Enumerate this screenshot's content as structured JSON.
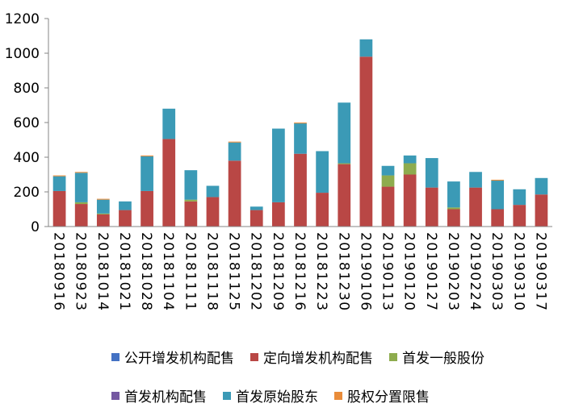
{
  "chart_data": {
    "type": "bar",
    "stacked": true,
    "categories": [
      "20180916",
      "20180923",
      "20181014",
      "20181021",
      "20181028",
      "20181104",
      "20181111",
      "20181118",
      "20181125",
      "20181202",
      "20181209",
      "20181216",
      "20181223",
      "20181230",
      "20190106",
      "20190113",
      "20190120",
      "20190127",
      "20190203",
      "20190224",
      "20190303",
      "20190310",
      "20190317"
    ],
    "series": [
      {
        "name": "公开增发机构配售",
        "color": "#4472C4",
        "values": [
          0,
          0,
          0,
          0,
          0,
          0,
          0,
          0,
          0,
          0,
          0,
          0,
          0,
          0,
          0,
          0,
          0,
          0,
          0,
          0,
          0,
          0,
          0
        ]
      },
      {
        "name": "定向增发机构配售",
        "color": "#B94745",
        "values": [
          205,
          130,
          70,
          95,
          205,
          505,
          145,
          170,
          380,
          95,
          140,
          420,
          195,
          360,
          980,
          230,
          300,
          225,
          100,
          225,
          100,
          125,
          185
        ]
      },
      {
        "name": "首发一般股份",
        "color": "#8EAC4E",
        "values": [
          0,
          10,
          5,
          0,
          0,
          0,
          10,
          0,
          0,
          0,
          0,
          0,
          0,
          5,
          0,
          65,
          65,
          0,
          10,
          0,
          0,
          0,
          0
        ]
      },
      {
        "name": "首发机构配售",
        "color": "#7458A1",
        "values": [
          0,
          0,
          0,
          0,
          0,
          0,
          0,
          0,
          0,
          0,
          0,
          0,
          0,
          0,
          0,
          0,
          0,
          0,
          0,
          0,
          0,
          0,
          0
        ]
      },
      {
        "name": "首发原始股东",
        "color": "#3B9AB6",
        "values": [
          85,
          170,
          80,
          50,
          200,
          175,
          170,
          65,
          105,
          20,
          425,
          175,
          240,
          350,
          100,
          55,
          45,
          170,
          150,
          90,
          165,
          90,
          95
        ]
      },
      {
        "name": "股权分置限售",
        "color": "#E98C3A",
        "values": [
          5,
          5,
          5,
          0,
          5,
          0,
          0,
          0,
          5,
          0,
          0,
          5,
          0,
          0,
          0,
          0,
          0,
          0,
          0,
          0,
          5,
          0,
          0
        ]
      }
    ],
    "ylim": [
      0,
      1200
    ],
    "yticks": [
      0,
      200,
      400,
      600,
      800,
      1000,
      1200
    ],
    "title": "",
    "xlabel": "",
    "ylabel": "",
    "legend_position": "bottom",
    "grid": false
  }
}
